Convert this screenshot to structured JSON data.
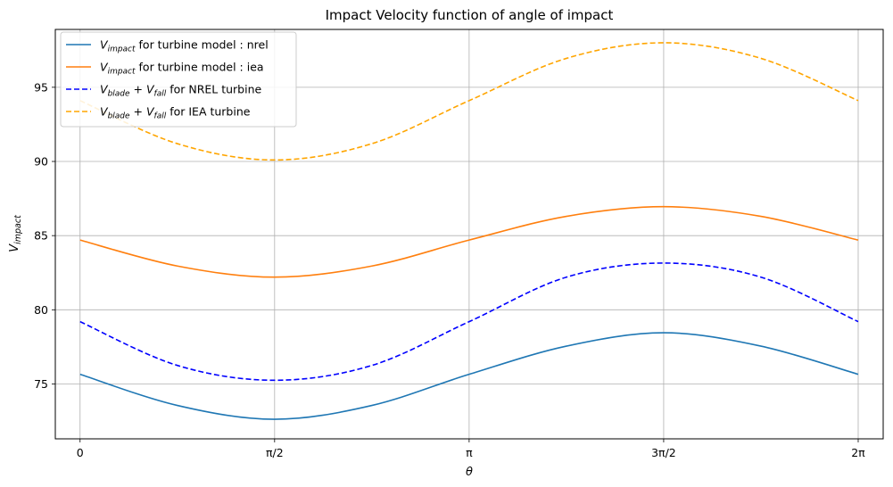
{
  "chart_data": {
    "type": "line",
    "title": "Impact Velocity function of angle of impact",
    "xlabel": "θ",
    "ylabel": "V_impact",
    "xlim": [
      -0.2,
      6.485
    ],
    "ylim": [
      71.3,
      98.9
    ],
    "xticks": [
      {
        "value": 0,
        "label": "0"
      },
      {
        "value": 1.5708,
        "label": "π/2"
      },
      {
        "value": 3.1416,
        "label": "π"
      },
      {
        "value": 4.7124,
        "label": "3π/2"
      },
      {
        "value": 6.2832,
        "label": "2π"
      }
    ],
    "yticks": [
      {
        "value": 75,
        "label": "75"
      },
      {
        "value": 80,
        "label": "80"
      },
      {
        "value": 85,
        "label": "85"
      },
      {
        "value": 90,
        "label": "90"
      },
      {
        "value": 95,
        "label": "95"
      }
    ],
    "grid": true,
    "legend_position": "top-left",
    "x": [
      0,
      0.7854,
      1.5708,
      2.3562,
      3.1416,
      3.927,
      4.7124,
      5.4978,
      6.2832
    ],
    "series": [
      {
        "name": "V_impact for turbine model : nrel",
        "legend_main": "V",
        "legend_sub": "impact",
        "legend_suffix": " for turbine model : nrel",
        "color": "#1f77b4",
        "dash": "solid",
        "values": [
          75.65,
          73.55,
          72.62,
          73.55,
          75.65,
          77.55,
          78.45,
          77.55,
          75.65
        ]
      },
      {
        "name": "V_impact for turbine model : iea",
        "legend_main": "V",
        "legend_sub": "impact",
        "legend_suffix": " for turbine model : iea",
        "color": "#ff7f0e",
        "dash": "solid",
        "values": [
          84.7,
          82.95,
          82.2,
          82.95,
          84.7,
          86.3,
          86.95,
          86.3,
          84.7
        ]
      },
      {
        "name": "V_blade + V_fall for NREL turbine",
        "legend_main": "V",
        "legend_sub": "blade",
        "legend_main2": " + V",
        "legend_sub2": "fall",
        "legend_suffix": " for NREL turbine",
        "color": "#0000ff",
        "dash": "dashed",
        "values": [
          79.2,
          76.25,
          75.25,
          76.25,
          79.2,
          82.2,
          83.15,
          82.2,
          79.2
        ]
      },
      {
        "name": "V_blade + V_fall for IEA turbine",
        "legend_main": "V",
        "legend_sub": "blade",
        "legend_main2": " + V",
        "legend_sub2": "fall",
        "legend_suffix": " for IEA turbine",
        "color": "#ffa500",
        "dash": "dashed",
        "values": [
          94.1,
          91.2,
          90.1,
          91.2,
          94.1,
          96.95,
          98.0,
          96.95,
          94.1
        ]
      }
    ]
  }
}
